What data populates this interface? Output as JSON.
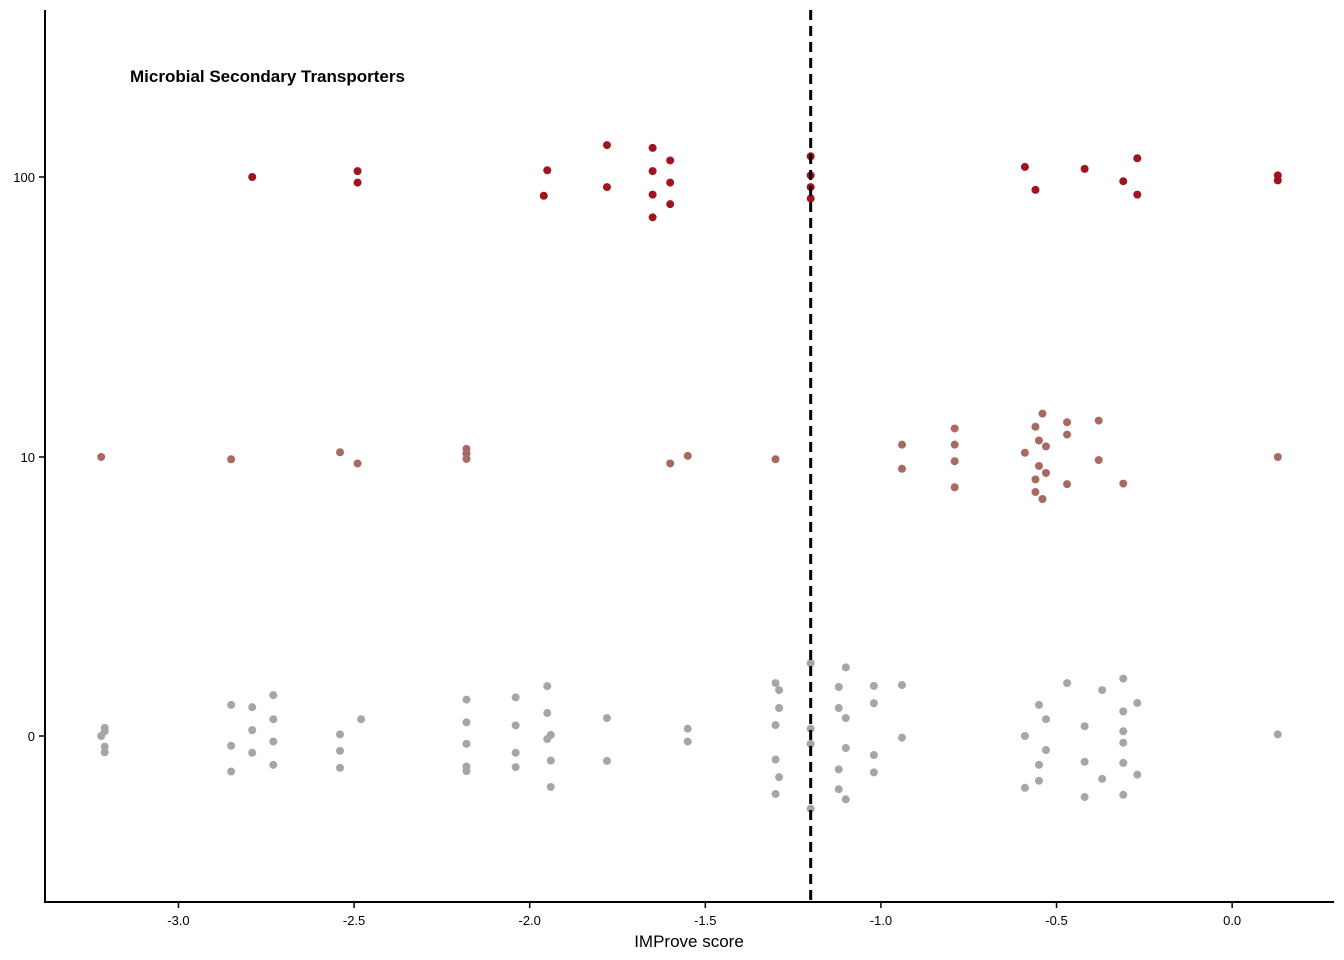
{
  "chart_data": {
    "type": "scatter",
    "title": "Microbial Secondary Transporters",
    "xlabel": "IMProve score",
    "ylabel": "",
    "xlim": [
      -3.38,
      0.29
    ],
    "x_ticks": [
      -3.0,
      -2.5,
      -2.0,
      -1.5,
      -1.0,
      -0.5,
      0.0
    ],
    "x_tick_labels": [
      "-3.0",
      "-2.5",
      "-2.0",
      "-1.5",
      "-1.0",
      "-0.5",
      "0.0"
    ],
    "y_scale": "categorical-jitter",
    "y_levels": [
      0,
      10,
      100
    ],
    "y_tick_labels": [
      "0",
      "10",
      "100"
    ],
    "threshold_x": -1.2,
    "threshold_style": "dashed",
    "grid": false,
    "colors": {
      "0": "#A6A6A6",
      "10": "#A86A60",
      "100": "#A0141E",
      "threshold": "#000000"
    },
    "series": [
      {
        "level": 100,
        "points": [
          [
            -2.79,
            0.0
          ],
          [
            -2.49,
            0.21
          ],
          [
            -2.49,
            -0.2
          ],
          [
            -1.96,
            -0.67
          ],
          [
            -1.95,
            0.24
          ],
          [
            -1.78,
            1.14
          ],
          [
            -1.78,
            -0.36
          ],
          [
            -1.65,
            1.04
          ],
          [
            -1.65,
            0.21
          ],
          [
            -1.65,
            -0.63
          ],
          [
            -1.65,
            -1.44
          ],
          [
            -1.6,
            0.59
          ],
          [
            -1.6,
            -0.2
          ],
          [
            -1.6,
            -0.97
          ],
          [
            -1.2,
            0.74
          ],
          [
            -1.2,
            0.06
          ],
          [
            -1.2,
            -0.36
          ],
          [
            -1.2,
            -0.77
          ],
          [
            -0.59,
            0.36
          ],
          [
            -0.56,
            -0.46
          ],
          [
            -0.42,
            0.29
          ],
          [
            -0.31,
            -0.15
          ],
          [
            -0.27,
            0.67
          ],
          [
            -0.27,
            -0.63
          ],
          [
            0.13,
            0.06
          ],
          [
            0.13,
            -0.12
          ]
        ]
      },
      {
        "level": 10,
        "points": [
          [
            -3.22,
            0.0
          ],
          [
            -2.85,
            -0.08
          ],
          [
            -2.54,
            0.17
          ],
          [
            -2.49,
            -0.23
          ],
          [
            -2.18,
            0.29
          ],
          [
            -2.18,
            0.12
          ],
          [
            -2.18,
            -0.07
          ],
          [
            -1.6,
            -0.23
          ],
          [
            -1.55,
            0.04
          ],
          [
            -1.3,
            -0.08
          ],
          [
            -0.94,
            0.44
          ],
          [
            -0.94,
            -0.42
          ],
          [
            -0.79,
            1.02
          ],
          [
            -0.79,
            0.44
          ],
          [
            -0.79,
            -0.15
          ],
          [
            -0.79,
            -1.08
          ],
          [
            -0.59,
            0.15
          ],
          [
            -0.56,
            1.08
          ],
          [
            -0.56,
            -0.8
          ],
          [
            -0.56,
            -1.25
          ],
          [
            -0.55,
            0.59
          ],
          [
            -0.55,
            -0.32
          ],
          [
            -0.54,
            1.55
          ],
          [
            -0.54,
            -1.5
          ],
          [
            -0.53,
            0.38
          ],
          [
            -0.53,
            -0.57
          ],
          [
            -0.47,
            1.24
          ],
          [
            -0.47,
            0.8
          ],
          [
            -0.47,
            -0.97
          ],
          [
            -0.38,
            1.3
          ],
          [
            -0.38,
            -0.11
          ],
          [
            -0.31,
            -0.95
          ],
          [
            0.13,
            0.0
          ]
        ]
      },
      {
        "level": 0,
        "points": [
          [
            -3.22,
            0.0
          ],
          [
            -3.21,
            0.29
          ],
          [
            -3.21,
            0.17
          ],
          [
            -3.21,
            -0.38
          ],
          [
            -3.21,
            -0.58
          ],
          [
            -2.85,
            1.11
          ],
          [
            -2.85,
            -0.35
          ],
          [
            -2.85,
            -1.27
          ],
          [
            -2.79,
            1.03
          ],
          [
            -2.79,
            0.21
          ],
          [
            -2.79,
            -0.6
          ],
          [
            -2.73,
            1.46
          ],
          [
            -2.73,
            0.6
          ],
          [
            -2.73,
            -0.2
          ],
          [
            -2.73,
            -1.03
          ],
          [
            -2.54,
            0.06
          ],
          [
            -2.54,
            -0.53
          ],
          [
            -2.54,
            -1.14
          ],
          [
            -2.48,
            0.6
          ],
          [
            -2.18,
            1.3
          ],
          [
            -2.18,
            0.49
          ],
          [
            -2.18,
            -0.28
          ],
          [
            -2.18,
            -1.09
          ],
          [
            -2.18,
            -1.25
          ],
          [
            -2.04,
            1.38
          ],
          [
            -2.04,
            0.38
          ],
          [
            -2.04,
            -0.6
          ],
          [
            -2.04,
            -1.11
          ],
          [
            -1.95,
            1.78
          ],
          [
            -1.95,
            0.82
          ],
          [
            -1.95,
            -0.11
          ],
          [
            -1.94,
            0.04
          ],
          [
            -1.94,
            -0.88
          ],
          [
            -1.94,
            -1.82
          ],
          [
            -1.78,
            0.64
          ],
          [
            -1.78,
            -0.89
          ],
          [
            -1.55,
            0.26
          ],
          [
            -1.55,
            -0.2
          ],
          [
            -1.3,
            1.89
          ],
          [
            -1.3,
            0.39
          ],
          [
            -1.3,
            -0.84
          ],
          [
            -1.3,
            -2.07
          ],
          [
            -1.29,
            1.64
          ],
          [
            -1.29,
            1.0
          ],
          [
            -1.29,
            -1.47
          ],
          [
            -1.2,
            2.6
          ],
          [
            -1.2,
            0.26
          ],
          [
            -1.2,
            -0.28
          ],
          [
            -1.2,
            -2.6
          ],
          [
            -1.12,
            1.75
          ],
          [
            -1.12,
            1.0
          ],
          [
            -1.12,
            -1.19
          ],
          [
            -1.12,
            -1.9
          ],
          [
            -1.1,
            2.45
          ],
          [
            -1.1,
            0.64
          ],
          [
            -1.1,
            -0.43
          ],
          [
            -1.1,
            -2.26
          ],
          [
            -1.02,
            1.79
          ],
          [
            -1.02,
            1.17
          ],
          [
            -1.02,
            -0.68
          ],
          [
            -1.02,
            -1.3
          ],
          [
            -0.94,
            1.82
          ],
          [
            -0.94,
            -0.06
          ],
          [
            -0.59,
            0.0
          ],
          [
            -0.59,
            -1.85
          ],
          [
            -0.55,
            1.11
          ],
          [
            -0.55,
            -1.03
          ],
          [
            -0.55,
            -1.6
          ],
          [
            -0.53,
            0.6
          ],
          [
            -0.53,
            -0.5
          ],
          [
            -0.47,
            1.89
          ],
          [
            -0.42,
            0.35
          ],
          [
            -0.42,
            -0.92
          ],
          [
            -0.42,
            -2.18
          ],
          [
            -0.37,
            1.64
          ],
          [
            -0.37,
            -1.53
          ],
          [
            -0.31,
            2.05
          ],
          [
            -0.31,
            0.88
          ],
          [
            -0.31,
            0.17
          ],
          [
            -0.31,
            -0.24
          ],
          [
            -0.31,
            -0.96
          ],
          [
            -0.31,
            -2.1
          ],
          [
            -0.27,
            1.18
          ],
          [
            -0.27,
            -1.38
          ],
          [
            0.13,
            0.06
          ]
        ]
      }
    ]
  }
}
